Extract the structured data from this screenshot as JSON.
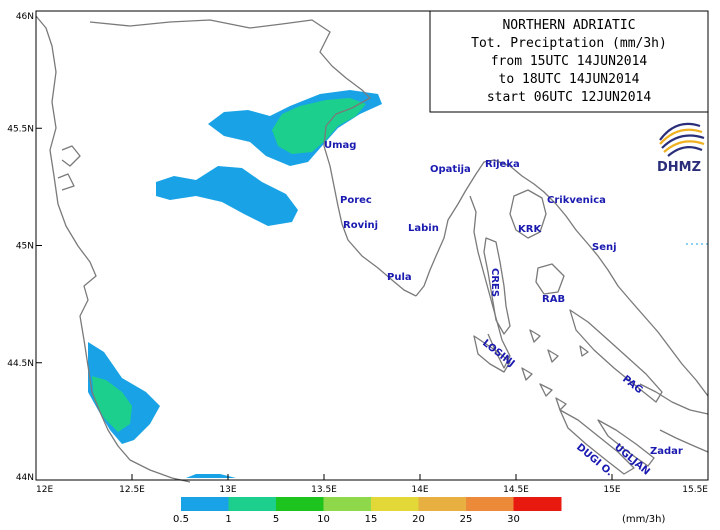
{
  "title": {
    "lines": [
      "NORTHERN ADRIATIC",
      "Tot. Preciptation (mm/3h)",
      "from 15UTC 14JUN2014",
      "to 18UTC 14JUN2014",
      "start 06UTC 12JUN2014"
    ]
  },
  "logo": {
    "text": "DHMZ"
  },
  "axes": {
    "x_ticks": [
      "12E",
      "12.5E",
      "13E",
      "13.5E",
      "14E",
      "14.5E",
      "15E",
      "15.5E"
    ],
    "y_ticks": [
      "46N",
      "45.5N",
      "45N",
      "44.5N",
      "44N"
    ]
  },
  "places": [
    {
      "id": "umag",
      "name": "Umag"
    },
    {
      "id": "porec",
      "name": "Porec"
    },
    {
      "id": "rovinj",
      "name": "Rovinj"
    },
    {
      "id": "pula",
      "name": "Pula"
    },
    {
      "id": "labin",
      "name": "Labin"
    },
    {
      "id": "opatija",
      "name": "Opatija"
    },
    {
      "id": "rijeka",
      "name": "Rijeka"
    },
    {
      "id": "crikvenica",
      "name": "Crikvenica"
    },
    {
      "id": "krk",
      "name": "KRK"
    },
    {
      "id": "senj",
      "name": "Senj"
    },
    {
      "id": "rab",
      "name": "RAB"
    },
    {
      "id": "cres",
      "name": "CRES"
    },
    {
      "id": "losinj",
      "name": "LOSINJ"
    },
    {
      "id": "pag",
      "name": "PAG"
    },
    {
      "id": "ugljan",
      "name": "UGLJAN"
    },
    {
      "id": "dugi-o",
      "name": "DUGI O."
    },
    {
      "id": "zadar",
      "name": "Zadar"
    }
  ],
  "legend": {
    "labels": [
      "0.5",
      "1",
      "5",
      "10",
      "15",
      "20",
      "25",
      "30"
    ],
    "unit": "(mm/3h)",
    "colors": [
      "#19a3e6",
      "#1ccf8c",
      "#1ec41e",
      "#8fd84a",
      "#e2d938",
      "#e8b040",
      "#ec8a3a",
      "#e81a10"
    ]
  },
  "colors": {
    "coast": "#7a7a7a",
    "precip_low": "#19a3e6",
    "precip_mid": "#1ccf8c",
    "place_text": "#1a1ab0"
  }
}
